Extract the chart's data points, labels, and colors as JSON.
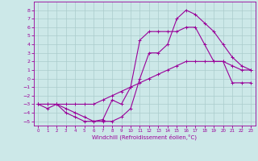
{
  "xlabel": "Windchill (Refroidissement éolien,°C)",
  "bg_color": "#cce8e8",
  "line_color": "#990099",
  "grid_color": "#aacccc",
  "xlim": [
    -0.5,
    23.5
  ],
  "ylim": [
    -5.5,
    9.0
  ],
  "xticks": [
    0,
    1,
    2,
    3,
    4,
    5,
    6,
    7,
    8,
    9,
    10,
    11,
    12,
    13,
    14,
    15,
    16,
    17,
    18,
    19,
    20,
    21,
    22,
    23
  ],
  "yticks": [
    -5,
    -4,
    -3,
    -2,
    -1,
    0,
    1,
    2,
    3,
    4,
    5,
    6,
    7,
    8
  ],
  "line1_x": [
    0,
    1,
    2,
    3,
    4,
    5,
    6,
    7,
    8,
    9,
    10,
    11,
    12,
    13,
    14,
    15,
    16,
    17,
    18,
    19,
    20,
    21,
    22,
    23
  ],
  "line1_y": [
    -3,
    -3.5,
    -3,
    -4,
    -4.5,
    -5,
    -5,
    -4.8,
    -2.5,
    -3,
    -1,
    4.5,
    5.5,
    5.5,
    5.5,
    5.5,
    6,
    6,
    4,
    2,
    2,
    -0.5,
    -0.5,
    -0.5
  ],
  "line2_x": [
    0,
    1,
    2,
    3,
    4,
    5,
    6,
    7,
    8,
    9,
    10,
    11,
    12,
    13,
    14,
    15,
    16,
    17,
    18,
    19,
    20,
    21,
    22,
    23
  ],
  "line2_y": [
    -3,
    -3,
    -3,
    -3,
    -3,
    -3,
    -3,
    -2.5,
    -2,
    -1.5,
    -1,
    -0.5,
    0,
    0.5,
    1,
    1.5,
    2,
    2,
    2,
    2,
    2,
    1.5,
    1,
    1
  ],
  "line3_x": [
    0,
    1,
    2,
    3,
    4,
    5,
    6,
    7,
    8,
    9,
    10,
    11,
    12,
    13,
    14,
    15,
    16,
    17,
    18,
    19,
    20,
    21,
    22,
    23
  ],
  "line3_y": [
    -3,
    -3,
    -3,
    -3.5,
    -4,
    -4.5,
    -5,
    -5,
    -5,
    -4.5,
    -3.5,
    0,
    3,
    3,
    4,
    7,
    8,
    7.5,
    6.5,
    5.5,
    4,
    2.5,
    1.5,
    1
  ]
}
